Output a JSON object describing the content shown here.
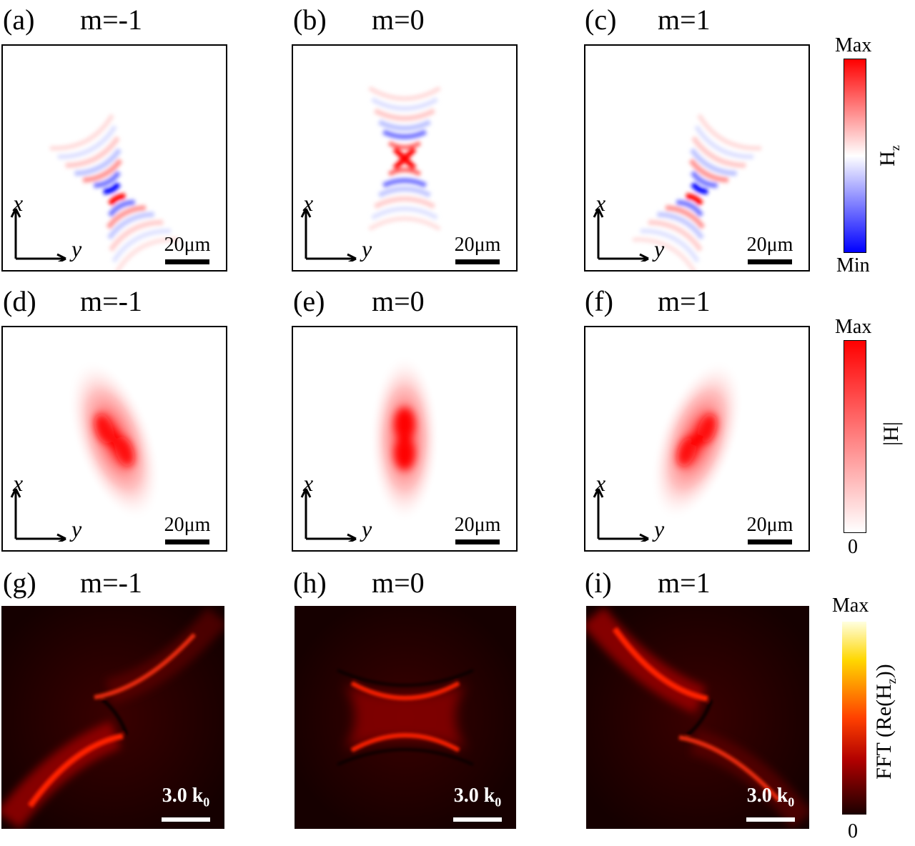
{
  "panels": [
    {
      "label": "(a)",
      "m": "m=-1"
    },
    {
      "label": "(b)",
      "m": "m=0"
    },
    {
      "label": "(c)",
      "m": "m=1"
    },
    {
      "label": "(d)",
      "m": "m=-1"
    },
    {
      "label": "(e)",
      "m": "m=0"
    },
    {
      "label": "(f)",
      "m": "m=1"
    },
    {
      "label": "(g)",
      "m": "m=-1"
    },
    {
      "label": "(h)",
      "m": "m=0"
    },
    {
      "label": "(i)",
      "m": "m=1"
    }
  ],
  "axes": {
    "x": "x",
    "y": "y"
  },
  "scalebar_real": "20μm",
  "scalebar_k": {
    "value": "3.0 k",
    "sub": "0"
  },
  "colorbars": {
    "hz": {
      "max": "Max",
      "min": "Min",
      "name": "H",
      "sub": "z",
      "colors": [
        "#ff0000",
        "#ffffff",
        "#0000ff"
      ]
    },
    "habs": {
      "max": "Max",
      "min": "0",
      "name": "|H|",
      "colors": [
        "#ff0000",
        "#ffffff"
      ]
    },
    "fft": {
      "max": "Max",
      "min": "0",
      "name_pre": "FFT (Re(H",
      "sub": "z",
      "name_post": "))",
      "colors": [
        "#ffffe0",
        "#ffd700",
        "#ff4000",
        "#b00000",
        "#1a0000"
      ]
    }
  }
}
